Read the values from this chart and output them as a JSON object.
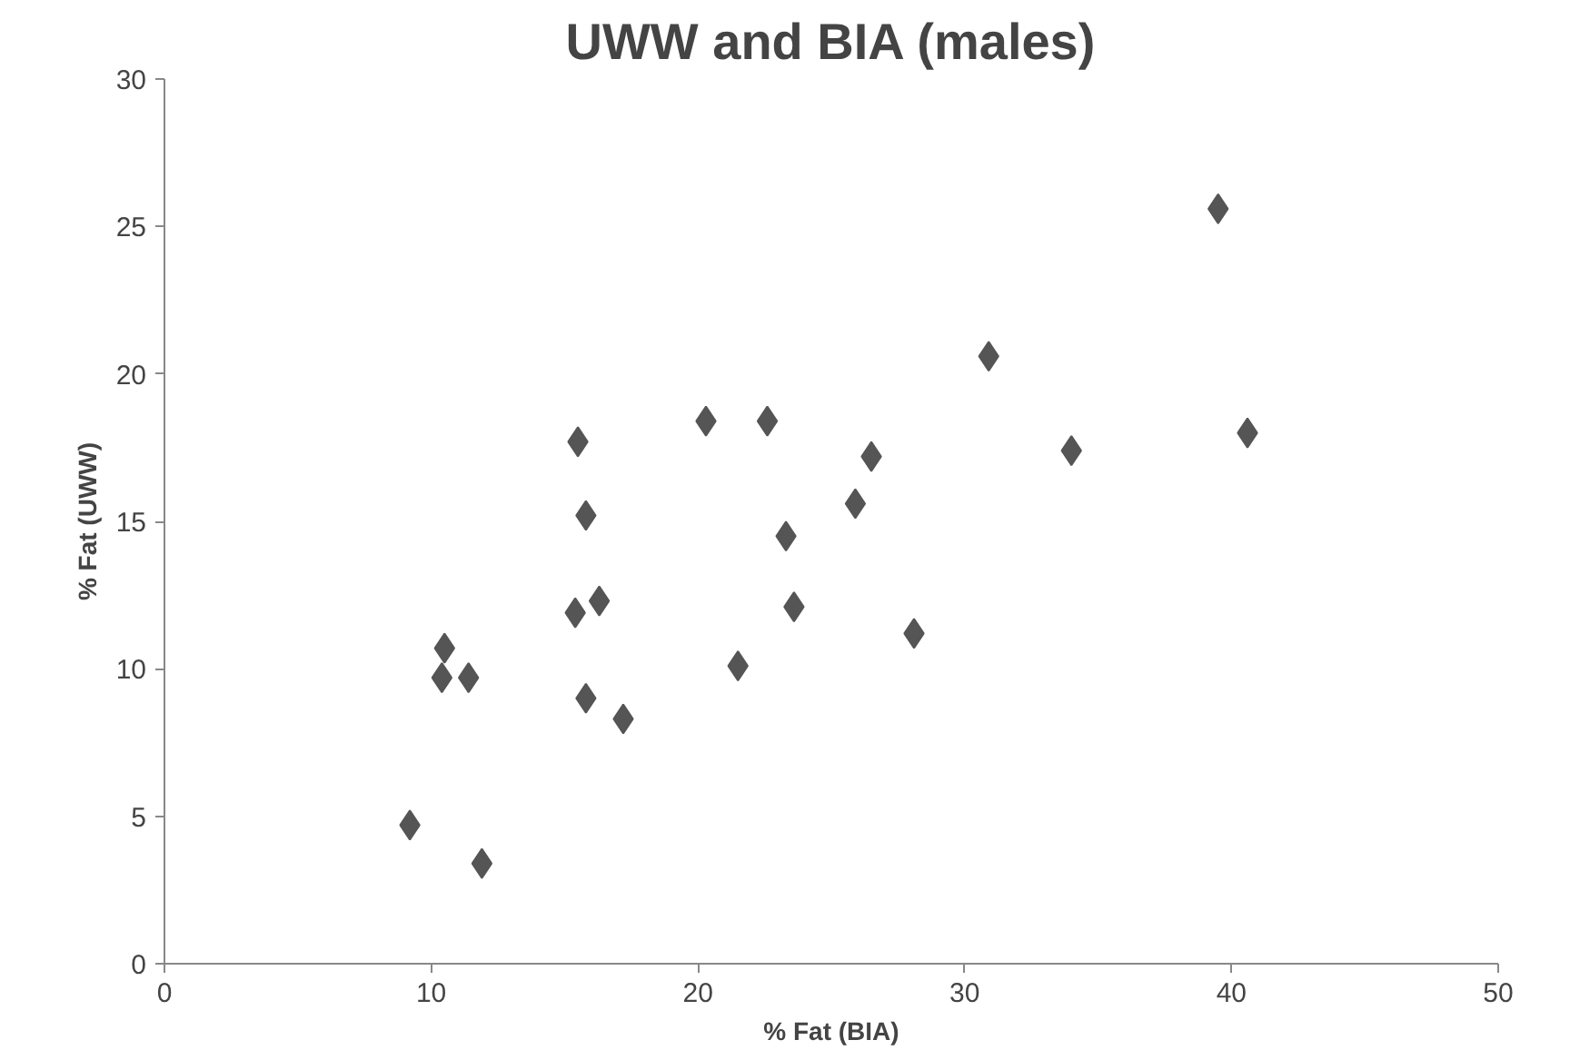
{
  "chart_data": {
    "type": "scatter",
    "title": "UWW and BIA (males)",
    "xlabel": "% Fat (BIA)",
    "ylabel": "% Fat (UWW)",
    "x": [
      9.2,
      11.9,
      10.5,
      10.4,
      11.4,
      15.5,
      15.8,
      15.4,
      16.3,
      15.8,
      17.2,
      20.3,
      22.6,
      21.5,
      23.3,
      23.6,
      25.9,
      26.5,
      28.1,
      30.9,
      34.0,
      39.5,
      40.6
    ],
    "series": [
      {
        "color": "#555555",
        "values": [
          4.7,
          3.4,
          10.7,
          9.7,
          9.7,
          17.7,
          15.2,
          11.9,
          12.3,
          9.0,
          8.3,
          18.4,
          18.4,
          10.1,
          14.5,
          12.1,
          15.6,
          17.2,
          11.2,
          20.6,
          17.4,
          25.6,
          18.0
        ]
      }
    ],
    "xlim": [
      0,
      50
    ],
    "xticks": [
      0,
      10,
      20,
      30,
      40,
      50
    ],
    "ylim": [
      0,
      30
    ],
    "yticks": [
      0,
      5,
      10,
      15,
      20,
      25,
      30
    ],
    "grid": false,
    "marker": "diamond"
  }
}
